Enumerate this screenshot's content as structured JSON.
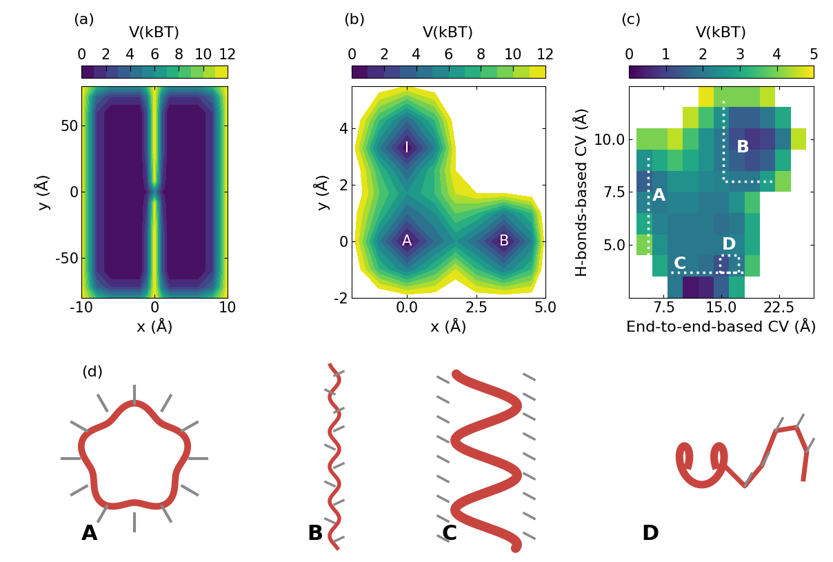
{
  "chart_data": [
    {
      "type": "contour",
      "panel_label": "(a)",
      "colorbar_label": "V(kBT)",
      "colorbar_range": [
        0,
        12
      ],
      "colorbar_ticks": [
        0,
        2,
        4,
        6,
        8,
        10,
        12
      ],
      "xlabel": "x (Å)",
      "ylabel": "y (Å)",
      "xlim": [
        -10,
        10
      ],
      "ylim": [
        -80,
        80
      ],
      "xticks": [
        -10,
        0,
        10
      ],
      "yticks": [
        -50,
        0,
        50
      ],
      "x": [
        -10,
        -8,
        -6,
        -4,
        -2,
        -1,
        0,
        1,
        2,
        4,
        6,
        8,
        10
      ],
      "y": [
        -80,
        -72,
        -60,
        -30,
        -8,
        -3,
        0,
        3,
        8,
        30,
        60,
        72,
        80
      ],
      "cells": [
        [
          12,
          8,
          6,
          6,
          6,
          8,
          12,
          8,
          6,
          6,
          6,
          8,
          12
        ],
        [
          12,
          4,
          2,
          2,
          2,
          5,
          12,
          5,
          2,
          2,
          2,
          4,
          12
        ],
        [
          12,
          2,
          0,
          0,
          0,
          3,
          12,
          3,
          0,
          0,
          0,
          2,
          12
        ],
        [
          12,
          2,
          0,
          0,
          0,
          3,
          12,
          3,
          0,
          0,
          0,
          2,
          12
        ],
        [
          12,
          2,
          0,
          0,
          0,
          2,
          11,
          2,
          0,
          0,
          0,
          2,
          12
        ],
        [
          12,
          2,
          0,
          0,
          0,
          1.5,
          7,
          1.5,
          0,
          0,
          0,
          2,
          12
        ],
        [
          12,
          2,
          0,
          0,
          0,
          1,
          5,
          1,
          0,
          0,
          0,
          2,
          12
        ],
        [
          12,
          2,
          0,
          0,
          0,
          1.5,
          7,
          1.5,
          0,
          0,
          0,
          2,
          12
        ],
        [
          12,
          2,
          0,
          0,
          0,
          2,
          11,
          2,
          0,
          0,
          0,
          2,
          12
        ],
        [
          12,
          2,
          0,
          0,
          0,
          3,
          12,
          3,
          0,
          0,
          0,
          2,
          12
        ],
        [
          12,
          2,
          0,
          0,
          0,
          3,
          12,
          3,
          0,
          0,
          0,
          2,
          12
        ],
        [
          12,
          4,
          2,
          2,
          2,
          5,
          12,
          5,
          2,
          2,
          2,
          4,
          12
        ],
        [
          12,
          8,
          6,
          6,
          6,
          8,
          12,
          8,
          6,
          6,
          6,
          8,
          12
        ]
      ]
    },
    {
      "type": "contour",
      "panel_label": "(b)",
      "colorbar_label": "V(kBT)",
      "colorbar_range": [
        0,
        12
      ],
      "colorbar_ticks": [
        0,
        2,
        4,
        6,
        8,
        10,
        12
      ],
      "xlabel": "x (Å)",
      "ylabel": "y (Å)",
      "xlim": [
        -2,
        5
      ],
      "ylim": [
        -2,
        5.5
      ],
      "xticks": [
        {
          "value": 0,
          "label": "0.0"
        },
        {
          "value": 2.5,
          "label": "2.5"
        },
        {
          "value": 5,
          "label": "5.0"
        }
      ],
      "yticks": [
        -2,
        0,
        2,
        4
      ],
      "x": [
        -2,
        -1,
        0,
        1,
        1.75,
        2.5,
        3.5,
        4.5,
        5
      ],
      "y": [
        -2,
        -1,
        0,
        1,
        1.7,
        2.5,
        3.3,
        4.3,
        5.5
      ],
      "cells": [
        [
          14,
          14,
          13,
          13,
          14,
          13,
          13,
          13,
          14
        ],
        [
          14,
          8,
          5,
          8,
          11,
          8,
          5,
          8,
          14
        ],
        [
          13,
          5,
          0,
          4,
          6,
          4,
          0,
          5,
          13
        ],
        [
          13,
          8,
          4,
          6,
          9,
          8,
          5,
          8,
          14
        ],
        [
          14,
          9,
          6,
          8,
          11,
          12,
          12,
          13,
          14
        ],
        [
          14,
          8,
          4,
          8,
          12,
          14,
          14,
          14,
          14
        ],
        [
          13,
          5,
          0,
          5,
          12,
          14,
          14,
          14,
          14
        ],
        [
          14,
          8,
          4,
          8,
          13,
          14,
          14,
          14,
          14
        ],
        [
          14,
          13,
          12,
          13,
          14,
          14,
          14,
          14,
          14
        ]
      ],
      "annotations": [
        {
          "text": "I",
          "x": 0,
          "y": 3.3
        },
        {
          "text": "A",
          "x": 0,
          "y": 0
        },
        {
          "text": "B",
          "x": 3.5,
          "y": 0
        }
      ]
    },
    {
      "type": "heatmap",
      "panel_label": "(c)",
      "colorbar_label": "V(kBT)",
      "colorbar_range": [
        0,
        5
      ],
      "colorbar_ticks": [
        0,
        1,
        2,
        3,
        4,
        5
      ],
      "xlabel": "End-to-end-based CV (Å)",
      "ylabel": "H-bonds-based CV (Å)",
      "xlim": [
        3,
        27
      ],
      "ylim": [
        2.5,
        12.5
      ],
      "xticks": [
        7.5,
        {
          "value": 15,
          "label": "15.0"
        },
        22.5
      ],
      "yticks": [
        {
          "value": 5,
          "label": "5.0"
        },
        7.5,
        {
          "value": 10,
          "label": "10.0"
        }
      ],
      "x": [
        5,
        7,
        9,
        11,
        13,
        15,
        17,
        19,
        21,
        23,
        25
      ],
      "y": [
        3,
        4,
        5,
        6,
        7,
        8,
        9,
        10,
        11,
        12
      ],
      "cells": [
        [
          null,
          null,
          2,
          0.3,
          0.5,
          1.5,
          3,
          null,
          null,
          null,
          null
        ],
        [
          null,
          3,
          2,
          2,
          1.8,
          1.2,
          2,
          3.5,
          null,
          null,
          null
        ],
        [
          4,
          2.5,
          2,
          2,
          2,
          2,
          2.2,
          3,
          null,
          null,
          null
        ],
        [
          3,
          2.2,
          2,
          2,
          2,
          1.8,
          2,
          3,
          null,
          null,
          null
        ],
        [
          2.2,
          2,
          2.2,
          2.2,
          2,
          2,
          2.5,
          3.5,
          null,
          null,
          null
        ],
        [
          1.5,
          2,
          2.5,
          2.5,
          2.3,
          2.2,
          2,
          2,
          2.8,
          4,
          null
        ],
        [
          2.5,
          3,
          3.5,
          3,
          2.5,
          2,
          1.5,
          1.2,
          1.5,
          3,
          null
        ],
        [
          4,
          4,
          4.5,
          3.5,
          2.5,
          2,
          1.2,
          0.8,
          1,
          2,
          4.5
        ],
        [
          null,
          null,
          null,
          4.5,
          3.5,
          2.5,
          1.5,
          1.5,
          2,
          3,
          null
        ],
        [
          null,
          null,
          null,
          null,
          4.8,
          4,
          4,
          4,
          4.5,
          null,
          null
        ]
      ],
      "regions": [
        {
          "x": [
            5.5,
            5.5
          ],
          "y": [
            4.5,
            9.3
          ]
        },
        {
          "x": [
            15.3,
            15.3,
            22
          ],
          "y": [
            11.8,
            8,
            8
          ]
        },
        {
          "x": [
            8.5,
            18.3
          ],
          "y": [
            3.7,
            3.7
          ]
        },
        {
          "x": [
            14.8,
            17.2,
            17.2,
            14.8,
            14.8
          ],
          "y": [
            3.7,
            3.7,
            4.5,
            4.5,
            3.7
          ]
        }
      ],
      "annotations": [
        {
          "text": "A",
          "x": 6.9,
          "y": 7.3
        },
        {
          "text": "B",
          "x": 17.8,
          "y": 9.6
        },
        {
          "text": "C",
          "x": 9.6,
          "y": 4.1
        },
        {
          "text": "D",
          "x": 16.0,
          "y": 5.0
        }
      ]
    }
  ],
  "structures": {
    "panel_label": "(d)",
    "labels": [
      "A",
      "B",
      "C",
      "D"
    ]
  }
}
